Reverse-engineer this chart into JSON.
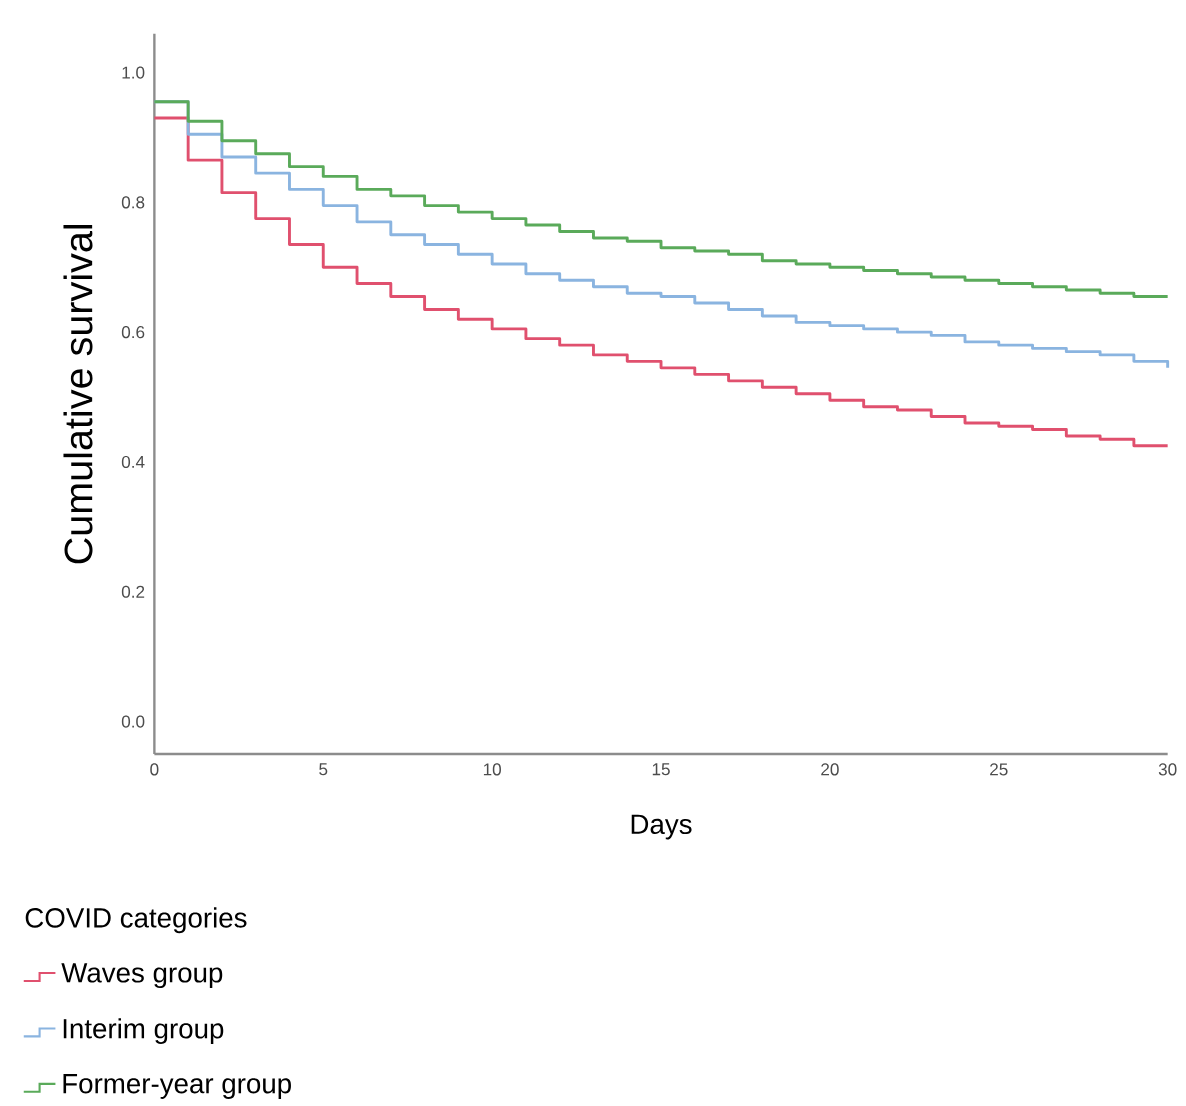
{
  "chart_data": {
    "type": "step",
    "xlabel": "Days",
    "ylabel": "Cumulative survival",
    "legend_title": "COVID categories",
    "legend": "bottom left",
    "x": [
      0,
      1,
      2,
      3,
      4,
      5,
      6,
      7,
      8,
      9,
      10,
      11,
      12,
      13,
      14,
      15,
      16,
      17,
      18,
      19,
      20,
      21,
      22,
      23,
      24,
      25,
      26,
      27,
      28,
      29,
      30
    ],
    "xlim": [
      0,
      30
    ],
    "xticks": [
      0,
      5,
      10,
      15,
      20,
      25,
      30
    ],
    "ylim": [
      -0.05,
      1.06
    ],
    "yticks": [
      {
        "value": 0,
        "label": "0.0"
      },
      {
        "value": 0.2,
        "label": "0.2"
      },
      {
        "value": 0.4,
        "label": "0.4"
      },
      {
        "value": 0.6,
        "label": "0.6"
      },
      {
        "value": 0.8,
        "label": "0.8"
      },
      {
        "value": 1,
        "label": "1.0"
      }
    ],
    "series": [
      {
        "name": "Waves group",
        "color": "#e0506e",
        "values": [
          0.93,
          0.865,
          0.815,
          0.775,
          0.735,
          0.7,
          0.675,
          0.655,
          0.635,
          0.62,
          0.605,
          0.59,
          0.58,
          0.565,
          0.555,
          0.545,
          0.535,
          0.525,
          0.515,
          0.505,
          0.495,
          0.485,
          0.48,
          0.47,
          0.46,
          0.455,
          0.45,
          0.44,
          0.435,
          0.425,
          0.425
        ]
      },
      {
        "name": "Interim group",
        "color": "#8ab4e0",
        "values": [
          0.955,
          0.905,
          0.87,
          0.845,
          0.82,
          0.795,
          0.77,
          0.75,
          0.735,
          0.72,
          0.705,
          0.69,
          0.68,
          0.67,
          0.66,
          0.655,
          0.645,
          0.635,
          0.625,
          0.615,
          0.61,
          0.605,
          0.6,
          0.595,
          0.585,
          0.58,
          0.575,
          0.57,
          0.565,
          0.555,
          0.545
        ]
      },
      {
        "name": "Former-year group",
        "color": "#5aaa5a",
        "values": [
          0.955,
          0.925,
          0.895,
          0.875,
          0.855,
          0.84,
          0.82,
          0.81,
          0.795,
          0.785,
          0.775,
          0.765,
          0.755,
          0.745,
          0.74,
          0.73,
          0.725,
          0.72,
          0.71,
          0.705,
          0.7,
          0.695,
          0.69,
          0.685,
          0.68,
          0.675,
          0.67,
          0.665,
          0.66,
          0.655,
          0.655
        ]
      }
    ]
  }
}
